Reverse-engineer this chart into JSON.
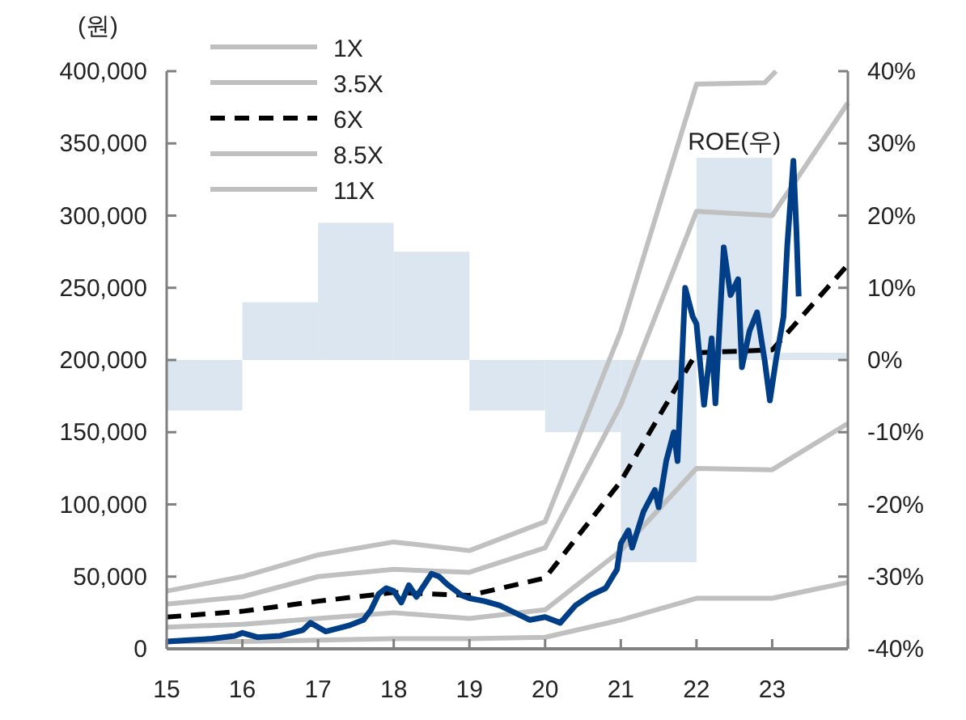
{
  "chart_data": {
    "type": "line",
    "ylabel": "(원)",
    "xlim": [
      15,
      24
    ],
    "xticks": [
      15,
      16,
      17,
      18,
      19,
      20,
      21,
      22,
      23,
      {
        "value": 24,
        "label": null
      }
    ],
    "ylim": [
      0,
      400000
    ],
    "yticks": [
      {
        "value": 0,
        "label": "0"
      },
      {
        "value": 50000,
        "label": "50,000"
      },
      {
        "value": 100000,
        "label": "100,000"
      },
      {
        "value": 150000,
        "label": "150,000"
      },
      {
        "value": 200000,
        "label": "200,000"
      },
      {
        "value": 250000,
        "label": "250,000"
      },
      {
        "value": 300000,
        "label": "300,000"
      },
      {
        "value": 350000,
        "label": "350,000"
      },
      {
        "value": 400000,
        "label": "400,000"
      }
    ],
    "y2lim": [
      -40,
      40
    ],
    "y2ticks": [
      {
        "value": -40,
        "label": "-40%"
      },
      {
        "value": -30,
        "label": "-30%"
      },
      {
        "value": -20,
        "label": "-20%"
      },
      {
        "value": -10,
        "label": "-10%"
      },
      {
        "value": 0,
        "label": "0%"
      },
      {
        "value": 10,
        "label": "10%"
      },
      {
        "value": 20,
        "label": "20%"
      },
      {
        "value": 30,
        "label": "30%"
      },
      {
        "value": 40,
        "label": "40%"
      }
    ],
    "legend": "top left",
    "series": [
      {
        "name": "ROE(우)",
        "type": "bar",
        "axis": "y2",
        "color": "#dce6f1",
        "x": [
          15.5,
          16.5,
          17.5,
          18.5,
          19.5,
          20.5,
          21.5,
          22.5,
          23.5
        ],
        "values": [
          -7,
          8,
          19,
          15,
          -7,
          -10,
          -28,
          28,
          1
        ]
      },
      {
        "name": "1X",
        "color": "#c0c0c0",
        "line_style": "solid",
        "x": [
          15,
          16,
          17,
          18,
          19,
          20,
          21,
          22,
          23,
          24
        ],
        "values": [
          5000,
          5000,
          6000,
          7000,
          7000,
          8000,
          20000,
          35000,
          35000,
          46000
        ]
      },
      {
        "name": "3.5X",
        "color": "#c0c0c0",
        "line_style": "solid",
        "x": [
          15,
          16,
          17,
          18,
          19,
          20,
          21,
          22,
          23,
          24
        ],
        "values": [
          15000,
          17000,
          21000,
          25000,
          21000,
          27000,
          68000,
          125000,
          124000,
          156000
        ]
      },
      {
        "name": "6X",
        "color": "#000000",
        "line_style": "dashed",
        "x": [
          15,
          16,
          17,
          18,
          19,
          20,
          21,
          22,
          23,
          24
        ],
        "values": [
          22000,
          26000,
          33000,
          39000,
          37000,
          49000,
          116000,
          205000,
          207000,
          266000
        ]
      },
      {
        "name": "8.5X",
        "color": "#c0c0c0",
        "line_style": "solid",
        "x": [
          15,
          16,
          17,
          18,
          19,
          20,
          21,
          22,
          23,
          24
        ],
        "values": [
          31000,
          36000,
          50000,
          55000,
          53000,
          70000,
          169000,
          303000,
          300000,
          378000
        ]
      },
      {
        "name": "11X",
        "color": "#c0c0c0",
        "line_style": "solid",
        "x": [
          15,
          16,
          17,
          18,
          19,
          20,
          21,
          22,
          22.9,
          23.05
        ],
        "values": [
          40000,
          50000,
          65000,
          74000,
          68000,
          88000,
          220000,
          391000,
          392000,
          400000
        ]
      },
      {
        "color": "#003f87",
        "line_style": "solid",
        "x": [
          15,
          15.3,
          15.6,
          15.9,
          16,
          16.2,
          16.5,
          16.8,
          16.9,
          17,
          17.1,
          17.4,
          17.6,
          17.7,
          17.8,
          17.9,
          18,
          18.1,
          18.2,
          18.3,
          18.5,
          18.6,
          18.7,
          18.9,
          19,
          19.2,
          19.4,
          19.6,
          19.8,
          20,
          20.2,
          20.4,
          20.6,
          20.8,
          20.95,
          21,
          21.1,
          21.15,
          21.3,
          21.45,
          21.5,
          21.6,
          21.7,
          21.75,
          21.85,
          21.95,
          22,
          22.1,
          22.2,
          22.25,
          22.36,
          22.45,
          22.55,
          22.6,
          22.7,
          22.8,
          22.9,
          22.97,
          23.05,
          23.15,
          23.2,
          23.28,
          23.32,
          23.35
        ],
        "values": [
          5000,
          6000,
          7000,
          9000,
          11000,
          8000,
          9000,
          13000,
          18000,
          15000,
          12000,
          16000,
          20000,
          27000,
          38000,
          42000,
          40000,
          32000,
          44000,
          36000,
          52000,
          50000,
          45000,
          37000,
          35000,
          33000,
          30000,
          25000,
          20000,
          22000,
          18000,
          30000,
          37000,
          42000,
          55000,
          73000,
          82000,
          70000,
          95000,
          110000,
          98000,
          130000,
          150000,
          130000,
          250000,
          230000,
          225000,
          169000,
          215000,
          170000,
          278000,
          245000,
          256000,
          195000,
          220000,
          233000,
          200000,
          172000,
          200000,
          230000,
          280000,
          338000,
          290000,
          244000
        ]
      }
    ]
  }
}
